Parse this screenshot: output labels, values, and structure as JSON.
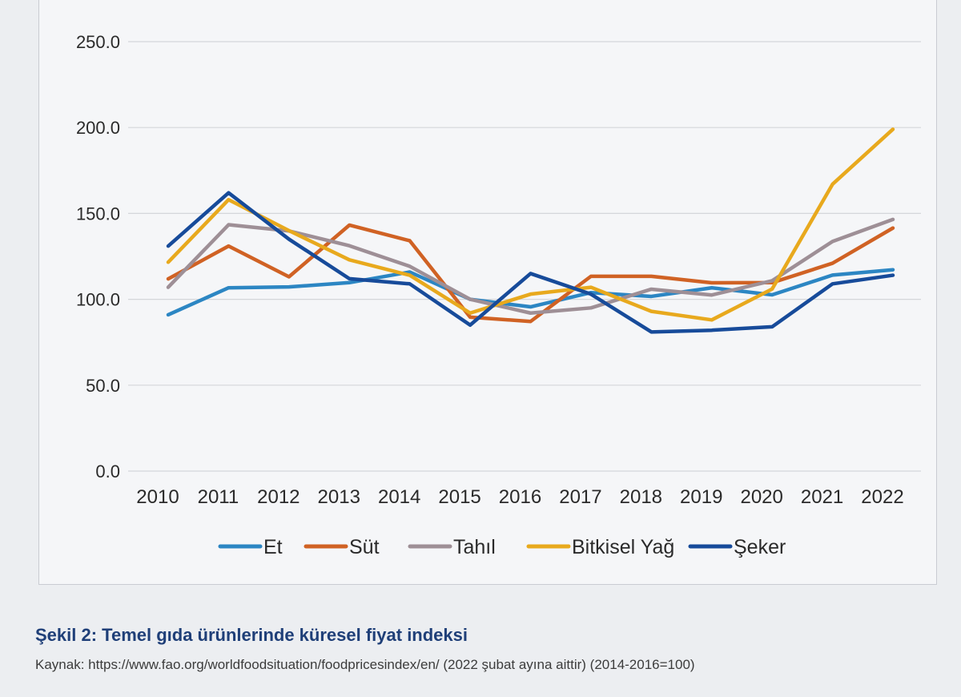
{
  "chart_data": {
    "type": "line",
    "title": "",
    "xlabel": "",
    "ylabel": "",
    "categories": [
      "2010",
      "2011",
      "2012",
      "2013",
      "2014",
      "2015",
      "2016",
      "2017",
      "2018",
      "2019",
      "2020",
      "2021",
      "2022"
    ],
    "y_ticks": [
      "0.0",
      "50.0",
      "100.0",
      "150.0",
      "200.0",
      "250.0"
    ],
    "ylim": [
      0,
      250
    ],
    "grid": true,
    "legend_position": "bottom",
    "series": [
      {
        "name": "Et",
        "color": "#2c86c3",
        "values": [
          91.0,
          106.7,
          107.2,
          109.7,
          115.9,
          100.0,
          95.6,
          103.9,
          101.7,
          106.7,
          102.6,
          114.1,
          117.2
        ]
      },
      {
        "name": "Süt",
        "color": "#d06224",
        "values": [
          111.9,
          131.0,
          113.1,
          143.2,
          134.1,
          89.6,
          87.1,
          113.4,
          113.4,
          109.6,
          109.7,
          121.0,
          141.5
        ]
      },
      {
        "name": "Tahıl",
        "color": "#9e8f96",
        "values": [
          107.0,
          143.4,
          139.8,
          131.2,
          119.2,
          100.0,
          92.0,
          95.0,
          105.9,
          102.5,
          110.8,
          133.7,
          146.5
        ]
      },
      {
        "name": "Bitkisel Yağ",
        "color": "#e8a91d",
        "values": [
          121.6,
          158.0,
          140.0,
          123.0,
          114.0,
          92.0,
          103.0,
          107.0,
          93.0,
          88.0,
          106.0,
          167.0,
          199.0
        ]
      },
      {
        "name": "Şeker",
        "color": "#174b9a",
        "values": [
          131.0,
          162.0,
          135.0,
          112.0,
          109.0,
          85.0,
          115.0,
          103.0,
          81.0,
          82.0,
          84.0,
          109.0,
          114.0
        ]
      }
    ]
  },
  "caption": "Şekil 2: Temel gıda ürünlerinde küresel fiyat indeksi",
  "source": "Kaynak: https://www.fao.org/worldfoodsituation/foodpricesindex/en/ (2022 şubat ayına aittir) (2014-2016=100)"
}
